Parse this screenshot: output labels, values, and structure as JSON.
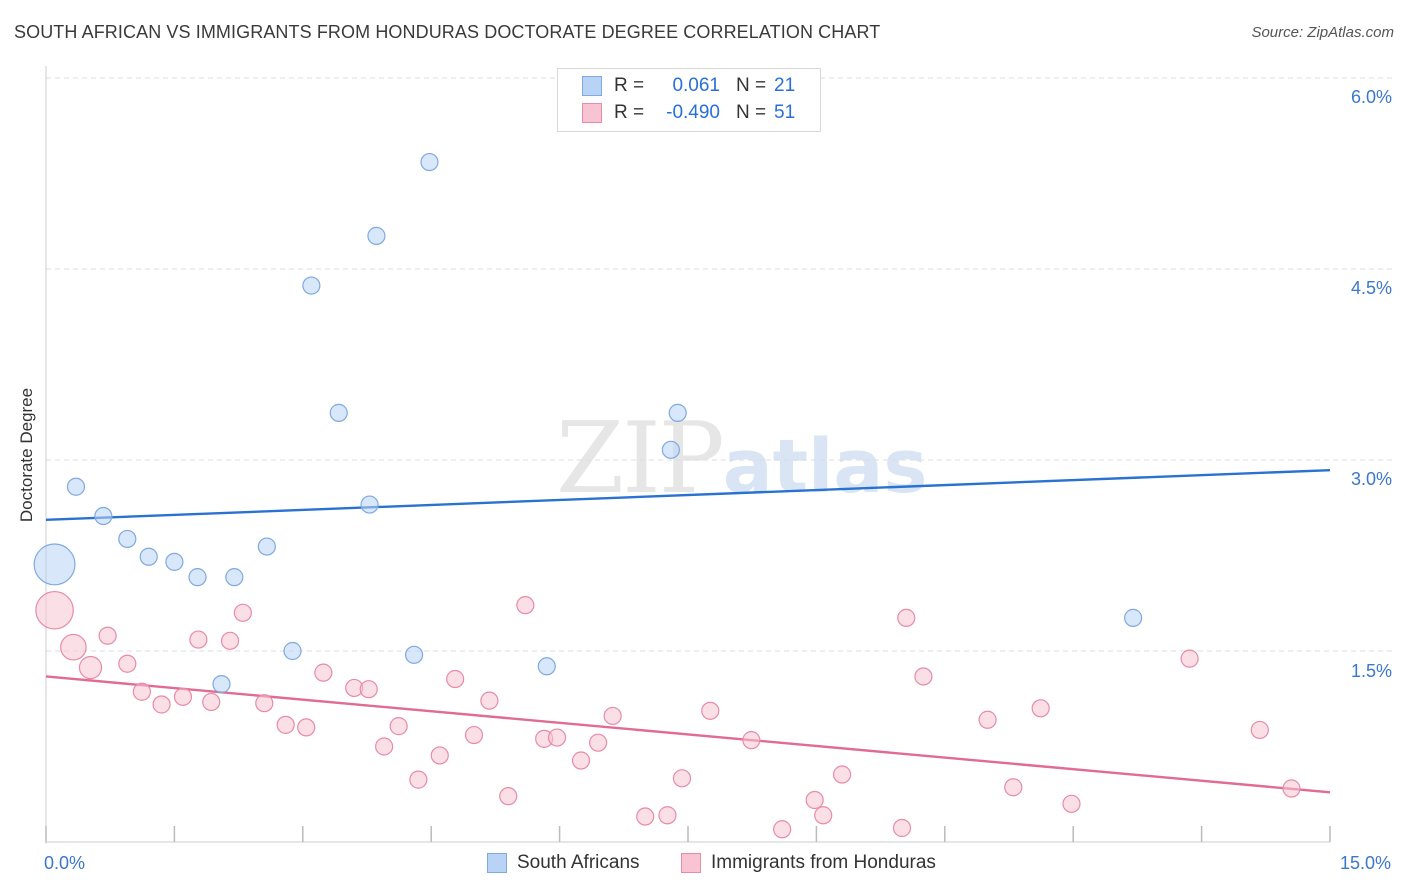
{
  "title": "SOUTH AFRICAN VS IMMIGRANTS FROM HONDURAS DOCTORATE DEGREE CORRELATION CHART",
  "source": "Source: ZipAtlas.com",
  "watermark": {
    "part1": "ZIP",
    "part2": "atlas"
  },
  "colors": {
    "blue_fill": "#b8d3f5",
    "blue_stroke": "#7fa9e0",
    "blue_line": "#2a72d1",
    "pink_fill": "#f8c4d3",
    "pink_stroke": "#e98aa6",
    "pink_line": "#e06b93",
    "axis_text": "#3a78c9",
    "grid": "#dddddd"
  },
  "legend": {
    "rows": [
      {
        "r_label": "R =",
        "r_value": "0.061",
        "n_label": "N =",
        "n_value": "21"
      },
      {
        "r_label": "R =",
        "r_value": "-0.490",
        "n_label": "N =",
        "n_value": "51"
      }
    ]
  },
  "bottom_legend": {
    "series1": "South Africans",
    "series2": "Immigrants from Honduras"
  },
  "chart_data": {
    "type": "scatter",
    "title": "SOUTH AFRICAN VS IMMIGRANTS FROM HONDURAS DOCTORATE DEGREE CORRELATION CHART",
    "xlabel": "",
    "ylabel": "Doctorate Degree",
    "xlim": [
      0,
      15
    ],
    "ylim": [
      0,
      6.0
    ],
    "x_tick_labels": [
      "0.0%",
      "15.0%"
    ],
    "y_ticks": [
      1.5,
      3.0,
      4.5,
      6.0
    ],
    "y_tick_labels": [
      "1.5%",
      "3.0%",
      "4.5%",
      "6.0%"
    ],
    "series": [
      {
        "name": "South Africans",
        "color": "blue",
        "trend": [
          [
            0,
            2.53
          ],
          [
            15,
            2.92
          ]
        ],
        "points": [
          {
            "x": 0.1,
            "y": 2.18,
            "s": 2.4
          },
          {
            "x": 0.35,
            "y": 2.79,
            "s": 1
          },
          {
            "x": 0.67,
            "y": 2.56,
            "s": 1
          },
          {
            "x": 0.95,
            "y": 2.38,
            "s": 1
          },
          {
            "x": 1.2,
            "y": 2.24,
            "s": 1
          },
          {
            "x": 1.5,
            "y": 2.2,
            "s": 1
          },
          {
            "x": 1.77,
            "y": 2.08,
            "s": 1
          },
          {
            "x": 2.2,
            "y": 2.08,
            "s": 1
          },
          {
            "x": 2.58,
            "y": 2.32,
            "s": 1
          },
          {
            "x": 2.05,
            "y": 1.24,
            "s": 1
          },
          {
            "x": 2.88,
            "y": 1.5,
            "s": 1
          },
          {
            "x": 3.1,
            "y": 4.37,
            "s": 1
          },
          {
            "x": 3.42,
            "y": 3.37,
            "s": 1
          },
          {
            "x": 3.78,
            "y": 2.65,
            "s": 1
          },
          {
            "x": 3.86,
            "y": 4.76,
            "s": 1
          },
          {
            "x": 4.3,
            "y": 1.47,
            "s": 1
          },
          {
            "x": 4.48,
            "y": 5.34,
            "s": 1
          },
          {
            "x": 5.85,
            "y": 1.38,
            "s": 1
          },
          {
            "x": 7.3,
            "y": 3.08,
            "s": 1
          },
          {
            "x": 7.38,
            "y": 3.37,
            "s": 1
          },
          {
            "x": 12.7,
            "y": 1.76,
            "s": 1
          }
        ]
      },
      {
        "name": "Immigrants from Honduras",
        "color": "pink",
        "trend": [
          [
            0,
            1.3
          ],
          [
            15,
            0.39
          ]
        ],
        "points": [
          {
            "x": 0.1,
            "y": 1.82,
            "s": 2.2
          },
          {
            "x": 0.32,
            "y": 1.53,
            "s": 1.5
          },
          {
            "x": 0.52,
            "y": 1.37,
            "s": 1.3
          },
          {
            "x": 0.72,
            "y": 1.62,
            "s": 1
          },
          {
            "x": 0.95,
            "y": 1.4,
            "s": 1
          },
          {
            "x": 1.12,
            "y": 1.18,
            "s": 1
          },
          {
            "x": 1.35,
            "y": 1.08,
            "s": 1
          },
          {
            "x": 1.6,
            "y": 1.14,
            "s": 1
          },
          {
            "x": 1.93,
            "y": 1.1,
            "s": 1
          },
          {
            "x": 1.78,
            "y": 1.59,
            "s": 1
          },
          {
            "x": 2.15,
            "y": 1.58,
            "s": 1
          },
          {
            "x": 2.3,
            "y": 1.8,
            "s": 1
          },
          {
            "x": 2.55,
            "y": 1.09,
            "s": 1
          },
          {
            "x": 2.8,
            "y": 0.92,
            "s": 1
          },
          {
            "x": 3.04,
            "y": 0.9,
            "s": 1
          },
          {
            "x": 3.24,
            "y": 1.33,
            "s": 1
          },
          {
            "x": 3.6,
            "y": 1.21,
            "s": 1
          },
          {
            "x": 3.77,
            "y": 1.2,
            "s": 1
          },
          {
            "x": 3.95,
            "y": 0.75,
            "s": 1
          },
          {
            "x": 4.12,
            "y": 0.91,
            "s": 1
          },
          {
            "x": 4.35,
            "y": 0.49,
            "s": 1
          },
          {
            "x": 4.6,
            "y": 0.68,
            "s": 1
          },
          {
            "x": 4.78,
            "y": 1.28,
            "s": 1
          },
          {
            "x": 5.0,
            "y": 0.84,
            "s": 1
          },
          {
            "x": 5.18,
            "y": 1.11,
            "s": 1
          },
          {
            "x": 5.4,
            "y": 0.36,
            "s": 1
          },
          {
            "x": 5.6,
            "y": 1.86,
            "s": 1
          },
          {
            "x": 5.82,
            "y": 0.81,
            "s": 1
          },
          {
            "x": 5.97,
            "y": 0.82,
            "s": 1
          },
          {
            "x": 6.25,
            "y": 0.64,
            "s": 1
          },
          {
            "x": 6.45,
            "y": 0.78,
            "s": 1
          },
          {
            "x": 6.62,
            "y": 0.99,
            "s": 1
          },
          {
            "x": 7.0,
            "y": 0.2,
            "s": 1
          },
          {
            "x": 7.26,
            "y": 0.21,
            "s": 1
          },
          {
            "x": 7.43,
            "y": 0.5,
            "s": 1
          },
          {
            "x": 7.76,
            "y": 1.03,
            "s": 1
          },
          {
            "x": 8.24,
            "y": 0.8,
            "s": 1
          },
          {
            "x": 8.6,
            "y": 0.1,
            "s": 1
          },
          {
            "x": 8.98,
            "y": 0.33,
            "s": 1
          },
          {
            "x": 9.08,
            "y": 0.21,
            "s": 1
          },
          {
            "x": 9.3,
            "y": 0.53,
            "s": 1
          },
          {
            "x": 10.0,
            "y": 0.11,
            "s": 1
          },
          {
            "x": 10.05,
            "y": 1.76,
            "s": 1
          },
          {
            "x": 10.25,
            "y": 1.3,
            "s": 1
          },
          {
            "x": 11.0,
            "y": 0.96,
            "s": 1
          },
          {
            "x": 11.3,
            "y": 0.43,
            "s": 1
          },
          {
            "x": 11.62,
            "y": 1.05,
            "s": 1
          },
          {
            "x": 11.98,
            "y": 0.3,
            "s": 1
          },
          {
            "x": 13.36,
            "y": 1.44,
            "s": 1
          },
          {
            "x": 14.18,
            "y": 0.88,
            "s": 1
          },
          {
            "x": 14.55,
            "y": 0.42,
            "s": 1
          }
        ]
      }
    ]
  }
}
